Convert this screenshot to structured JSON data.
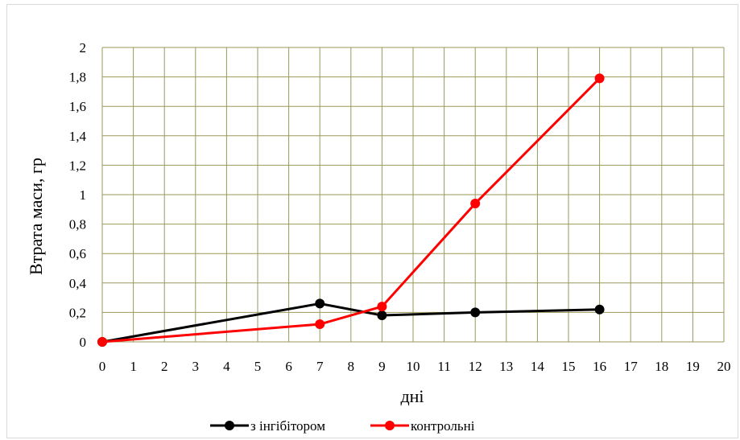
{
  "chart_data": {
    "type": "line",
    "xlabel": "дні",
    "ylabel": "Втрата маси, гр",
    "xlim": [
      0,
      20
    ],
    "ylim": [
      0,
      2
    ],
    "x_ticks": [
      "0",
      "1",
      "2",
      "3",
      "4",
      "5",
      "6",
      "7",
      "8",
      "9",
      "10",
      "11",
      "12",
      "13",
      "14",
      "15",
      "16",
      "17",
      "18",
      "19",
      "20"
    ],
    "y_ticks": [
      "0",
      "0,2",
      "0,4",
      "0,6",
      "0,8",
      "1",
      "1,2",
      "1,4",
      "1,6",
      "1,8",
      "2"
    ],
    "grid": true,
    "legend_position": "bottom",
    "series": [
      {
        "name": "з інгібітором",
        "color": "#000000",
        "x": [
          0,
          7,
          9,
          12,
          16
        ],
        "y": [
          0,
          0.26,
          0.18,
          0.2,
          0.22
        ]
      },
      {
        "name": "контрольні",
        "color": "#ff0000",
        "x": [
          0,
          7,
          9,
          12,
          16
        ],
        "y": [
          0,
          0.12,
          0.24,
          0.94,
          1.79
        ]
      }
    ],
    "grid_color": "#99995a"
  }
}
